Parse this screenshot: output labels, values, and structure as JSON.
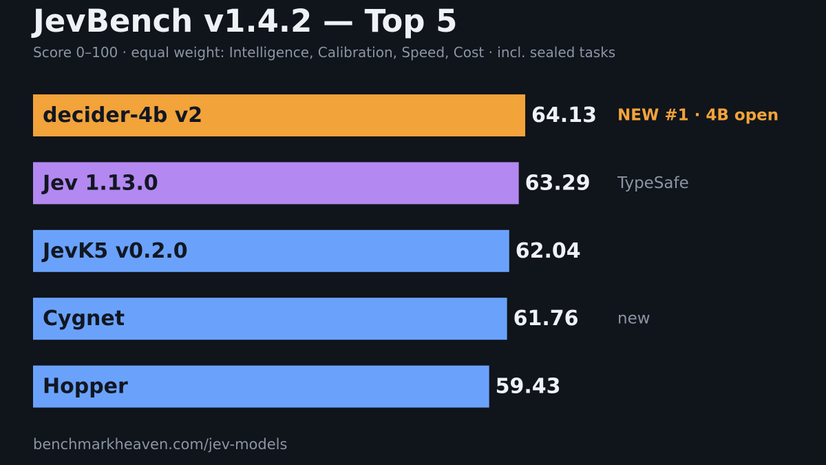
{
  "chart_data": {
    "type": "bar",
    "orientation": "horizontal",
    "title": "JevBench v1.4.2 — Top 5",
    "subtitle": "Score 0–100 · equal weight: Intelligence, Calibration, Speed, Cost · incl. sealed tasks",
    "xlim": [
      0,
      100
    ],
    "grid": false,
    "categories": [
      "decider-4b v2",
      "Jev 1.13.0",
      "JevK5 v0.2.0",
      "Cygnet",
      "Hopper"
    ],
    "values": [
      64.13,
      63.29,
      62.04,
      61.76,
      59.43
    ],
    "value_labels": [
      "64.13",
      "63.29",
      "62.04",
      "61.76",
      "59.43"
    ],
    "annotations": [
      "NEW #1 · 4B open",
      "TypeSafe",
      "",
      "new",
      ""
    ],
    "bar_colors": [
      "#f2a33a",
      "#b388f0",
      "#6aa2fb",
      "#6aa2fb",
      "#6aa2fb"
    ],
    "annotation_colors": [
      "#f2a33a",
      "#8b95a3",
      "#8b95a3",
      "#8b95a3",
      "#8b95a3"
    ],
    "annotation_bold": [
      true,
      false,
      false,
      false,
      false
    ]
  },
  "footer": {
    "source": "benchmarkheaven.com/jev-models"
  },
  "colors": {
    "background": "#10141b",
    "title": "#eef1f6",
    "muted": "#8b95a3",
    "bar_text": "#111722",
    "value_text": "#eef1f6"
  }
}
